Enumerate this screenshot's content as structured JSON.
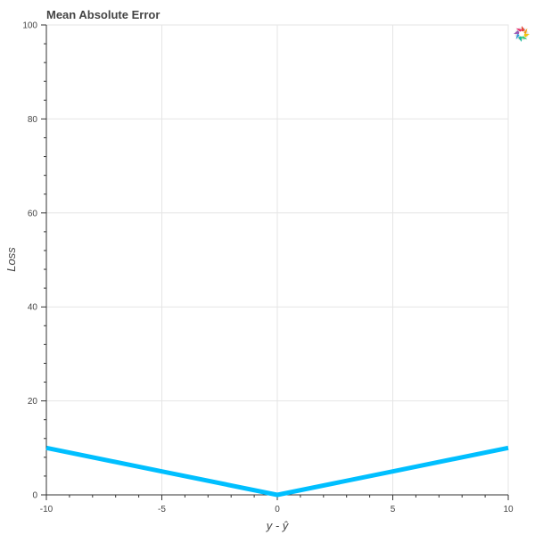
{
  "chart_data": {
    "type": "line",
    "title": "Mean Absolute Error",
    "xlabel": "y - ŷ",
    "ylabel": "Loss",
    "xlim": [
      -10,
      10
    ],
    "ylim": [
      0,
      100
    ],
    "xticks": [
      -10,
      -5,
      0,
      5,
      10
    ],
    "yticks": [
      0,
      20,
      40,
      60,
      80,
      100
    ],
    "x_tick_labels": [
      "-10",
      "-5",
      "0",
      "5",
      "10"
    ],
    "y_tick_labels": [
      "0",
      "20",
      "40",
      "60",
      "80",
      "100"
    ],
    "grid": true,
    "series": [
      {
        "color": "#00BFFF",
        "x": [
          -10,
          -5,
          0,
          5,
          10
        ],
        "y": [
          10,
          5,
          0,
          5,
          10
        ]
      }
    ]
  },
  "toolbar": {
    "logo_icon": "bokeh-logo-icon"
  }
}
